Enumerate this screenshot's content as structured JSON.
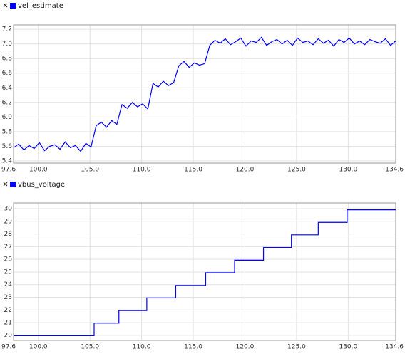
{
  "chart_data": [
    {
      "type": "line",
      "x": [
        97.6,
        98.1,
        98.6,
        99.1,
        99.6,
        100.1,
        100.6,
        101.1,
        101.6,
        102.1,
        102.6,
        103.1,
        103.6,
        104.1,
        104.6,
        105.1,
        105.6,
        106.1,
        106.6,
        107.1,
        107.6,
        108.1,
        108.6,
        109.1,
        109.6,
        110.1,
        110.6,
        111.1,
        111.6,
        112.1,
        112.6,
        113.1,
        113.6,
        114.1,
        114.6,
        115.1,
        115.6,
        116.1,
        116.6,
        117.1,
        117.6,
        118.1,
        118.6,
        119.1,
        119.6,
        120.1,
        120.6,
        121.1,
        121.6,
        122.1,
        122.6,
        123.1,
        123.6,
        124.1,
        124.6,
        125.1,
        125.6,
        126.1,
        126.6,
        127.1,
        127.6,
        128.1,
        128.6,
        129.1,
        129.6,
        130.1,
        130.6,
        131.1,
        131.6,
        132.1,
        132.6,
        133.1,
        133.6,
        134.1,
        134.6
      ],
      "series": [
        {
          "name": "vel_estimate",
          "color": "#0000ff",
          "values": [
            5.58,
            5.63,
            5.55,
            5.61,
            5.57,
            5.65,
            5.54,
            5.6,
            5.62,
            5.56,
            5.66,
            5.58,
            5.61,
            5.53,
            5.64,
            5.59,
            5.88,
            5.93,
            5.86,
            5.95,
            5.9,
            6.17,
            6.12,
            6.2,
            6.14,
            6.18,
            6.11,
            6.46,
            6.41,
            6.49,
            6.43,
            6.47,
            6.7,
            6.76,
            6.68,
            6.74,
            6.71,
            6.73,
            6.98,
            7.05,
            7.01,
            7.07,
            6.99,
            7.03,
            7.08,
            6.97,
            7.04,
            7.02,
            7.09,
            6.98,
            7.03,
            7.06,
            7.0,
            7.05,
            6.98,
            7.08,
            7.02,
            7.04,
            6.99,
            7.07,
            7.01,
            7.05,
            6.97,
            7.06,
            7.02,
            7.08,
            7.0,
            7.04,
            6.99,
            7.06,
            7.03,
            7.01,
            7.07,
            6.98,
            7.04
          ]
        }
      ],
      "xlim": [
        97.6,
        134.6
      ],
      "xticks": [
        97.6,
        {
          "value": 100,
          "label": "100.0"
        },
        {
          "value": 105,
          "label": "105.0"
        },
        {
          "value": 110,
          "label": "110.0"
        },
        {
          "value": 115,
          "label": "115.0"
        },
        {
          "value": 120,
          "label": "120.0"
        },
        {
          "value": 125,
          "label": "125.0"
        },
        {
          "value": 130,
          "label": "130.0"
        },
        134.6
      ],
      "ylim": [
        5.37,
        7.26
      ],
      "yticks": [
        5.4,
        5.6,
        5.8,
        {
          "value": 6,
          "label": "6.0"
        },
        6.2,
        6.4,
        6.6,
        6.8,
        {
          "value": 7,
          "label": "7.0"
        },
        7.2
      ],
      "grid": true
    },
    {
      "type": "line",
      "x": [
        97.6,
        105.4,
        105.4,
        107.8,
        107.8,
        110.5,
        110.5,
        113.3,
        113.3,
        116.2,
        116.2,
        119.0,
        119.0,
        121.8,
        121.8,
        124.5,
        124.5,
        127.1,
        127.1,
        129.9,
        129.9,
        134.6
      ],
      "series": [
        {
          "name": "vbus_voltage",
          "color": "#0000ff",
          "values": [
            19.97,
            19.97,
            20.96,
            20.96,
            21.95,
            21.95,
            22.95,
            22.95,
            23.94,
            23.94,
            24.94,
            24.94,
            25.93,
            25.93,
            26.93,
            26.93,
            27.93,
            27.93,
            28.92,
            28.92,
            29.91,
            29.91
          ]
        }
      ],
      "xlim": [
        97.6,
        134.6
      ],
      "xticks": [
        97.6,
        {
          "value": 100,
          "label": "100.0"
        },
        {
          "value": 105,
          "label": "105.0"
        },
        {
          "value": 110,
          "label": "110.0"
        },
        {
          "value": 115,
          "label": "115.0"
        },
        {
          "value": 120,
          "label": "120.0"
        },
        {
          "value": 125,
          "label": "125.0"
        },
        {
          "value": 130,
          "label": "130.0"
        },
        134.6
      ],
      "ylim": [
        19.6,
        30.45
      ],
      "yticks": [
        20,
        21,
        22,
        23,
        24,
        25,
        26,
        27,
        28,
        29,
        30
      ],
      "grid": true
    }
  ]
}
